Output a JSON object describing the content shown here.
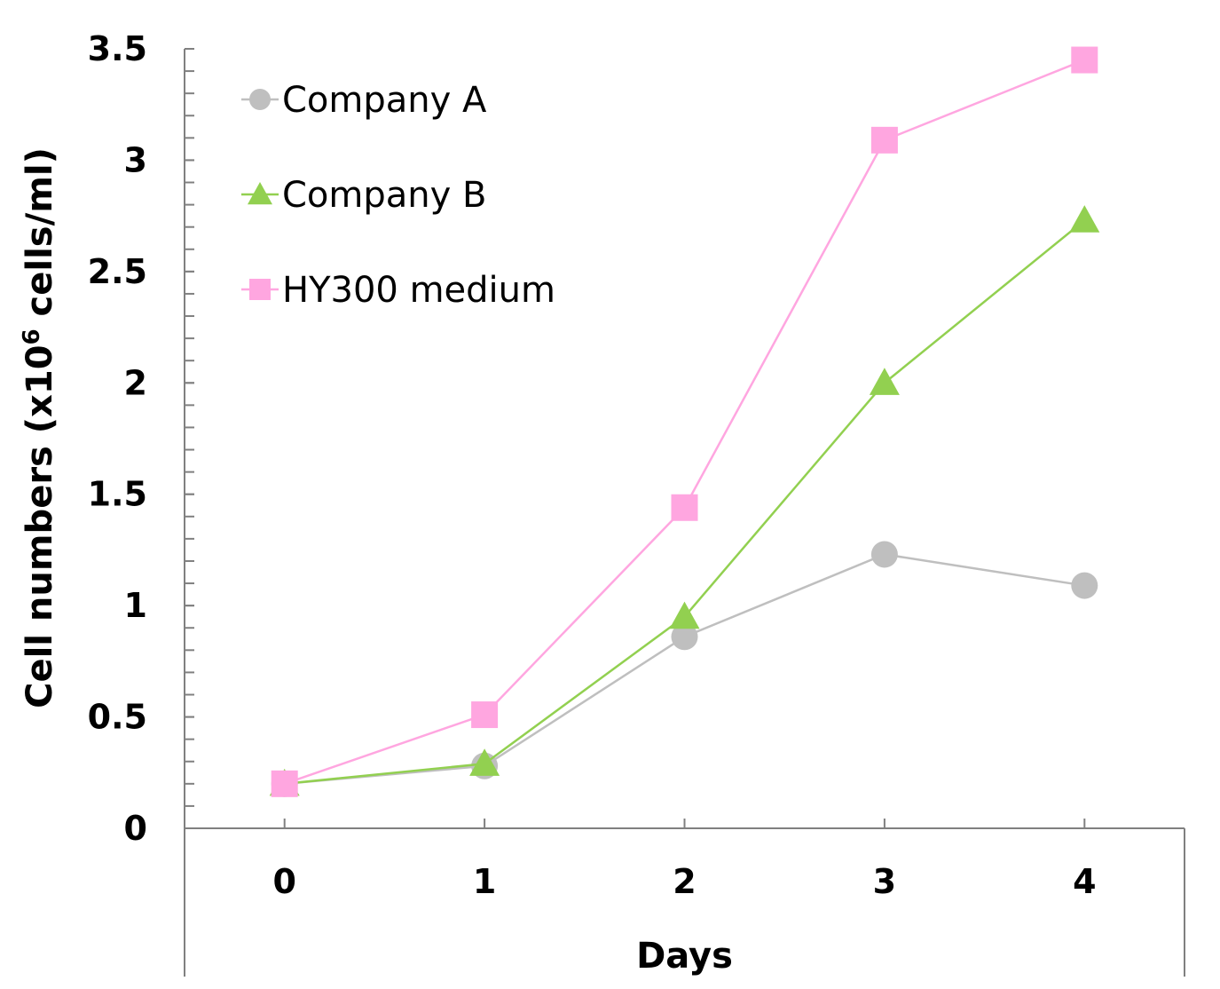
{
  "chart_data": {
    "type": "line",
    "title": "",
    "xlabel": "Days",
    "ylabel": {
      "before": "Cell numbers (x10",
      "sup": "6",
      "after": " cells/ml)"
    },
    "x": [
      0,
      1,
      2,
      3,
      4
    ],
    "x_tick_labels": [
      "0",
      "1",
      "2",
      "3",
      "4"
    ],
    "y_tick_labels": [
      "0",
      "0.5",
      "1",
      "1.5",
      "2",
      "2.5",
      "3",
      "3.5"
    ],
    "y_ticks": [
      0,
      0.5,
      1,
      1.5,
      2,
      2.5,
      3,
      3.5
    ],
    "xlim": [
      -0.5,
      4.5
    ],
    "ylim": [
      0,
      3.5
    ],
    "grid": false,
    "legend": "top-left",
    "series": [
      {
        "name": "Company A",
        "marker": "circle",
        "color": "#bfbfbf",
        "values": [
          0.2,
          0.28,
          0.86,
          1.23,
          1.09
        ]
      },
      {
        "name": "Company B",
        "marker": "triangle",
        "color": "#92d050",
        "values": [
          0.2,
          0.29,
          0.95,
          2.0,
          2.73
        ]
      },
      {
        "name": "HY300 medium",
        "marker": "square",
        "color": "#ffa6e0",
        "values": [
          0.2,
          0.51,
          1.44,
          3.09,
          3.45
        ]
      }
    ]
  }
}
